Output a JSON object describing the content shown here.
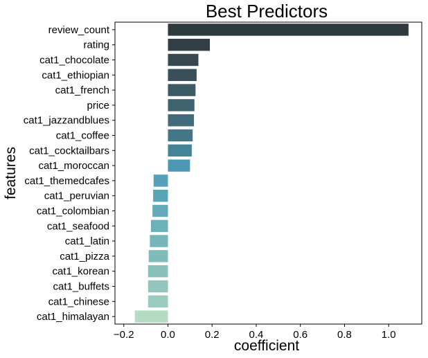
{
  "chart_data": {
    "type": "bar",
    "orientation": "horizontal",
    "title": "Best Predictors",
    "xlabel": "coefficient",
    "ylabel": "features",
    "xlim": [
      -0.24,
      1.15
    ],
    "xticks": [
      -0.2,
      0.0,
      0.2,
      0.4,
      0.6,
      0.8,
      1.0
    ],
    "xtick_labels": [
      "−0.2",
      "0.0",
      "0.2",
      "0.4",
      "0.6",
      "0.8",
      "1.0"
    ],
    "grid": false,
    "categories": [
      "review_count",
      "rating",
      "cat1_chocolate",
      "cat1_ethiopian",
      "cat1_french",
      "price",
      "cat1_jazzandblues",
      "cat1_coffee",
      "cat1_cocktailbars",
      "cat1_moroccan",
      "cat1_themedcafes",
      "cat1_peruvian",
      "cat1_colombian",
      "cat1_seafood",
      "cat1_latin",
      "cat1_pizza",
      "cat1_korean",
      "cat1_buffets",
      "cat1_chinese",
      "cat1_himalayan"
    ],
    "values": [
      1.09,
      0.19,
      0.138,
      0.13,
      0.125,
      0.12,
      0.118,
      0.112,
      0.108,
      0.1,
      -0.065,
      -0.067,
      -0.07,
      -0.077,
      -0.082,
      -0.087,
      -0.09,
      -0.09,
      -0.09,
      -0.15
    ],
    "colors": [
      "#2f3a3f",
      "#333f45",
      "#37494f",
      "#3a5059",
      "#3d5964",
      "#3f626f",
      "#416b7b",
      "#437787",
      "#448496",
      "#4d98b3",
      "#56a0b9",
      "#5aa4b9",
      "#63a9b9",
      "#6cb0b9",
      "#76b5b9",
      "#80bab9",
      "#89c0ba",
      "#93c5bc",
      "#9ccbbf",
      "#b4dcc4"
    ]
  }
}
